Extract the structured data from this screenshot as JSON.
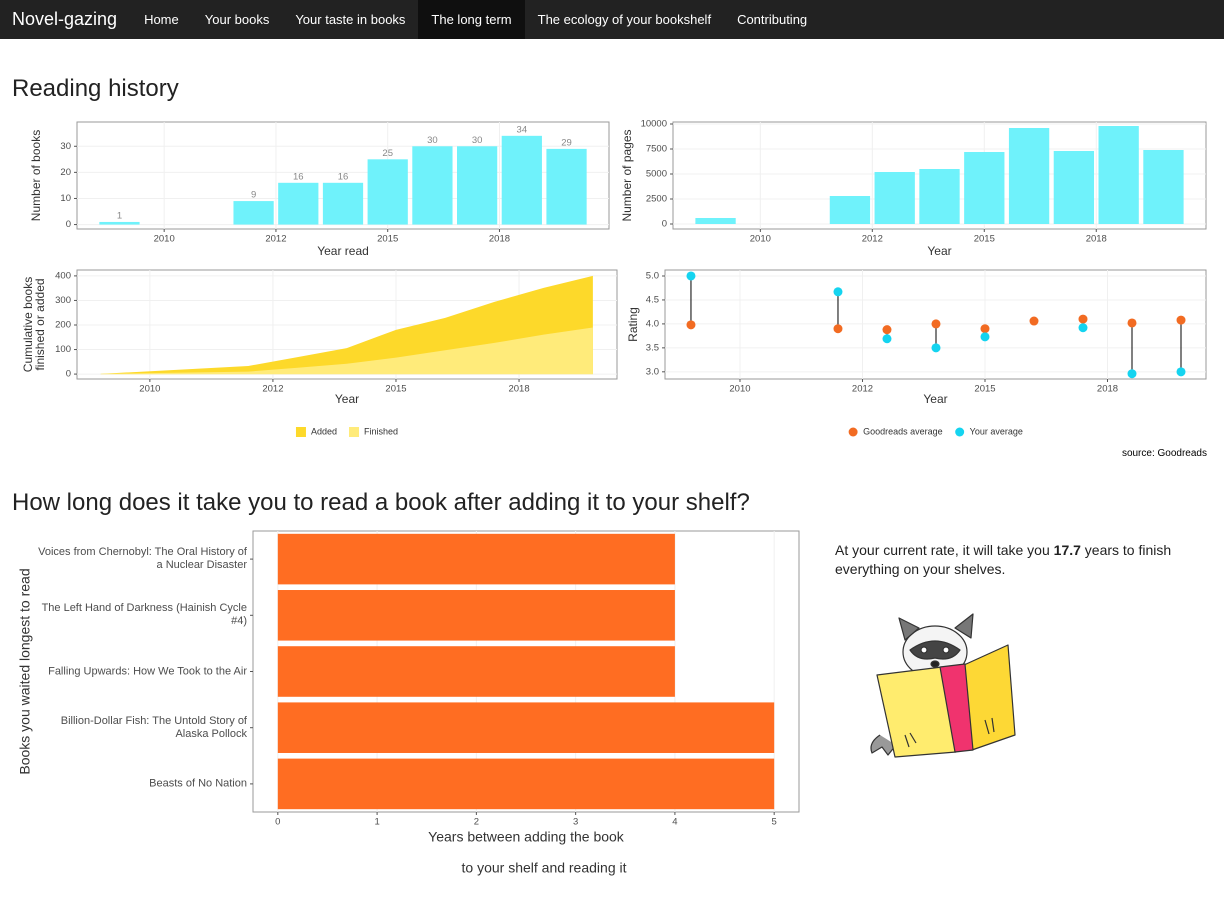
{
  "nav": {
    "brand": "Novel-gazing",
    "items": [
      "Home",
      "Your books",
      "Your taste in books",
      "The long term",
      "The ecology of your bookshelf",
      "Contributing"
    ],
    "active": "The long term"
  },
  "headings": [
    "Reading history",
    "How long does it take you to read a book after adding it to your shelf?"
  ],
  "source": "source: Goodreads",
  "rate_text": {
    "before": "At your current rate, it will take you",
    "value": 17.7,
    "after": "years to finish everything on your shelves."
  },
  "chart_data": [
    {
      "type": "bar",
      "ylabel": "Number of books",
      "xlabel": "Year read",
      "color": "#6ff2fb",
      "show_values": true,
      "grid": true,
      "x": [
        2009,
        2012,
        2013,
        2014,
        2015,
        2016,
        2017,
        2018,
        2019
      ],
      "values": [
        1,
        9,
        16,
        16,
        25,
        30,
        30,
        34,
        29
      ],
      "xlim": [
        2008.05,
        2019.95
      ],
      "xticks": [
        2010,
        {
          "value": 2012.5,
          "label": "2012"
        },
        2015,
        {
          "value": 2017.5,
          "label": "2018"
        }
      ],
      "ylim": [
        -1.7,
        39.3
      ],
      "yticks": [
        0,
        10,
        20,
        30
      ]
    },
    {
      "type": "bar",
      "ylabel": "Number of pages",
      "xlabel": "Year",
      "color": "#6ff2fb",
      "show_values": false,
      "grid": true,
      "x": [
        2009,
        2012,
        2013,
        2014,
        2015,
        2016,
        2017,
        2018,
        2019
      ],
      "values": [
        600,
        2800,
        5200,
        5500,
        7200,
        9600,
        7300,
        9800,
        7400
      ],
      "xlim": [
        2008.05,
        2019.95
      ],
      "xticks": [
        2010,
        {
          "value": 2012.5,
          "label": "2012"
        },
        2015,
        {
          "value": 2017.5,
          "label": "2018"
        }
      ],
      "ylim": [
        -500,
        10200
      ],
      "yticks": [
        0,
        2500,
        5000,
        7500,
        10000
      ]
    },
    {
      "type": "area",
      "ylabel": [
        "Cumulative books",
        "finished or added"
      ],
      "xlabel": "Year",
      "legend": "bottom",
      "grid": true,
      "x": [
        2009,
        2012,
        2013,
        2014,
        2015,
        2016,
        2017,
        2018,
        2019
      ],
      "series": [
        {
          "name": "Added",
          "color": "#fdd92a",
          "values": [
            1,
            33,
            69,
            106,
            180,
            229,
            294,
            351,
            400
          ]
        },
        {
          "name": "Finished",
          "color": "#ffeb7a",
          "values": [
            1,
            10,
            26,
            42,
            67,
            97,
            127,
            161,
            190
          ]
        }
      ],
      "xlim": [
        2008.52,
        2019.49
      ],
      "xticks": [
        2010,
        {
          "value": 2012.5,
          "label": "2012"
        },
        2015,
        {
          "value": 2017.5,
          "label": "2018"
        }
      ],
      "ylim": [
        -20,
        424
      ],
      "yticks": [
        0,
        100,
        200,
        300,
        400
      ]
    },
    {
      "type": "dumbbell",
      "ylabel": "Rating",
      "xlabel": "Year",
      "legend": "bottom",
      "grid": true,
      "x": [
        2009,
        2012,
        2013,
        2014,
        2015,
        2016,
        2017,
        2018,
        2019
      ],
      "series": [
        {
          "name": "Goodreads average",
          "color": "#f26b22",
          "values": [
            3.98,
            3.9,
            3.88,
            4.0,
            3.9,
            4.06,
            4.1,
            4.02,
            4.08
          ]
        },
        {
          "name": "Your average",
          "color": "#14d4f0",
          "values": [
            5.0,
            4.67,
            3.69,
            3.5,
            3.73,
            null,
            3.92,
            2.96,
            3.0
          ]
        }
      ],
      "xlim": [
        2008.47,
        2019.51
      ],
      "xticks": [
        2010,
        {
          "value": 2012.5,
          "label": "2012"
        },
        2015,
        {
          "value": 2017.5,
          "label": "2018"
        }
      ],
      "ylim": [
        2.85,
        5.125
      ],
      "yticks": [
        {
          "value": 3,
          "label": "3.0"
        },
        3.5,
        {
          "value": 4,
          "label": "4.0"
        },
        4.5,
        {
          "value": 5,
          "label": "5.0"
        }
      ]
    },
    {
      "type": "barh",
      "ylabel": "Books you waited longest to read",
      "xlabel": [
        "Years between adding the book",
        "to your shelf and reading it"
      ],
      "color": "#ff6d22",
      "grid": true,
      "categories": [
        "Voices from Chernobyl: The Oral History of a Nuclear Disaster",
        "The Left Hand of Darkness (Hainish Cycle #4)",
        "Falling Upwards: How We Took to the Air",
        "Billion-Dollar Fish: The Untold Story of Alaska Pollock",
        "Beasts of No Nation"
      ],
      "values": [
        4,
        4,
        4,
        5,
        5
      ],
      "xlim": [
        -0.25,
        5.25
      ],
      "xticks": [
        0,
        1,
        2,
        3,
        4,
        5
      ]
    }
  ]
}
